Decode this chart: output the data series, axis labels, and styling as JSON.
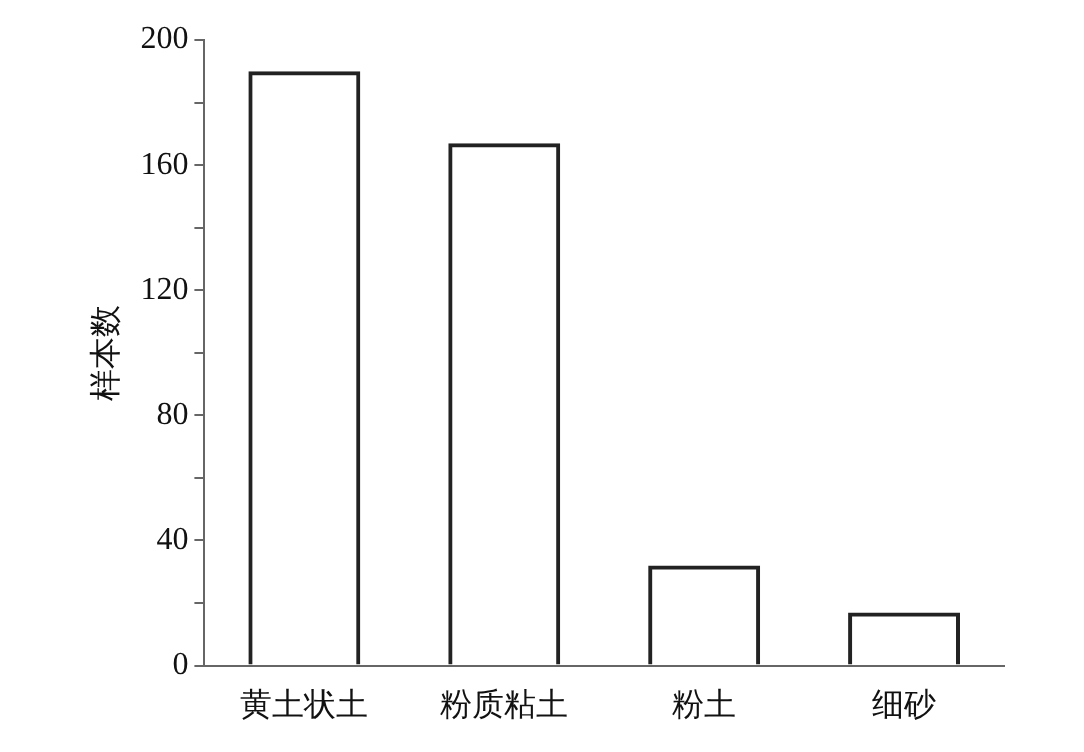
{
  "chart_data": {
    "type": "bar",
    "ylabel": "样本数",
    "categories": [
      "黄土状土",
      "粉质粘土",
      "粉土",
      "细砂"
    ],
    "values": [
      190,
      167,
      32,
      17
    ],
    "color": "#222222",
    "ylim": [
      0,
      200
    ],
    "yticks": [
      0,
      {
        "value": 20,
        "label": null
      },
      40,
      {
        "value": 60,
        "label": null
      },
      80,
      {
        "value": 100,
        "label": null
      },
      120,
      {
        "value": 140,
        "label": null
      },
      160,
      {
        "value": 180,
        "label": null
      },
      200
    ],
    "grid": false
  }
}
